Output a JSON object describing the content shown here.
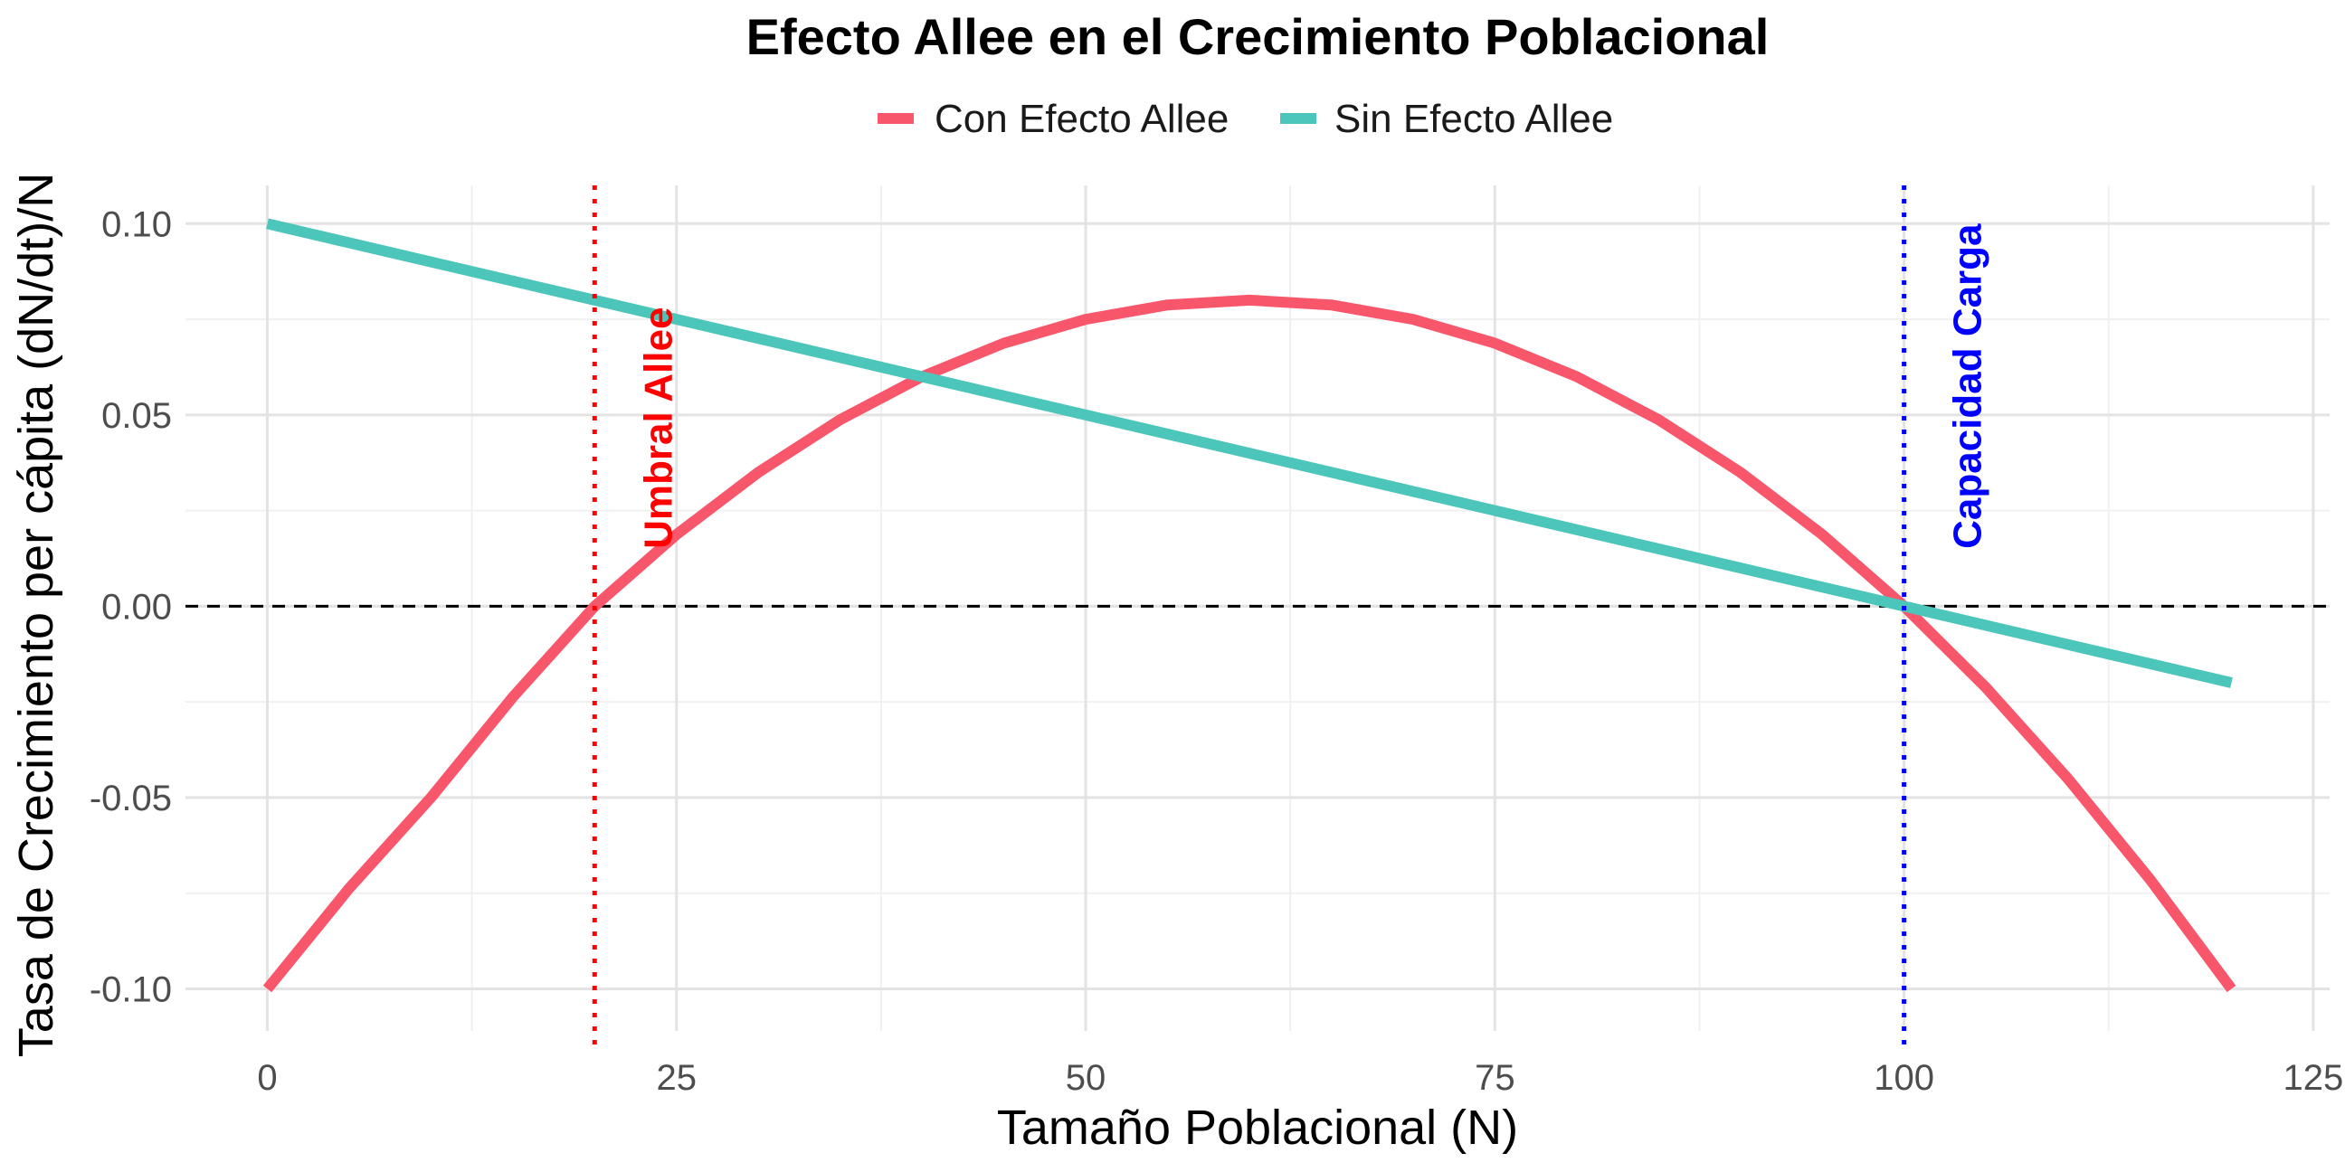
{
  "chart_data": {
    "type": "line",
    "title": "Efecto Allee en el Crecimiento Poblacional",
    "xlabel": "Tamaño Poblacional (N)",
    "ylabel": "Tasa de Crecimiento per cápita (dN/dt)/N",
    "xlim": [
      -5,
      126
    ],
    "ylim": [
      -0.111,
      0.11
    ],
    "x_ticks": [
      0,
      25,
      50,
      75,
      100,
      125
    ],
    "x_tick_labels": [
      "0",
      "25",
      "50",
      "75",
      "100",
      "125"
    ],
    "y_ticks": [
      -0.1,
      -0.05,
      0.0,
      0.05,
      0.1
    ],
    "y_tick_labels": [
      "-0.10",
      "-0.05",
      "0.00",
      "0.05",
      "0.10"
    ],
    "grid": true,
    "legend_position": "top",
    "series": [
      {
        "name": "Con Efecto Allee",
        "color": "#F8566B",
        "x": [
          0,
          5,
          10,
          15,
          20,
          25,
          30,
          35,
          40,
          45,
          50,
          55,
          60,
          65,
          70,
          75,
          80,
          85,
          90,
          95,
          100,
          105,
          110,
          115,
          120
        ],
        "y": [
          -0.1,
          -0.07375,
          -0.05,
          -0.02375,
          0.0,
          0.01875,
          0.035,
          0.04875,
          0.06,
          0.06875,
          0.075,
          0.07875,
          0.08,
          0.07875,
          0.075,
          0.06875,
          0.06,
          0.04875,
          0.035,
          0.01875,
          0.0,
          -0.02125,
          -0.045,
          -0.07125,
          -0.1
        ]
      },
      {
        "name": "Sin Efecto Allee",
        "color": "#4CC5BB",
        "x": [
          0,
          120
        ],
        "y": [
          0.1,
          -0.02
        ]
      }
    ],
    "reference_lines": [
      {
        "type": "horizontal",
        "y": 0,
        "style": "dashed",
        "color": "#000000"
      },
      {
        "type": "vertical",
        "x": 20,
        "style": "dotted",
        "color": "#FF0000",
        "label": "Umbral Allee"
      },
      {
        "type": "vertical",
        "x": 100,
        "style": "dotted",
        "color": "#0000FF",
        "label": "Capacidad Carga"
      }
    ]
  }
}
